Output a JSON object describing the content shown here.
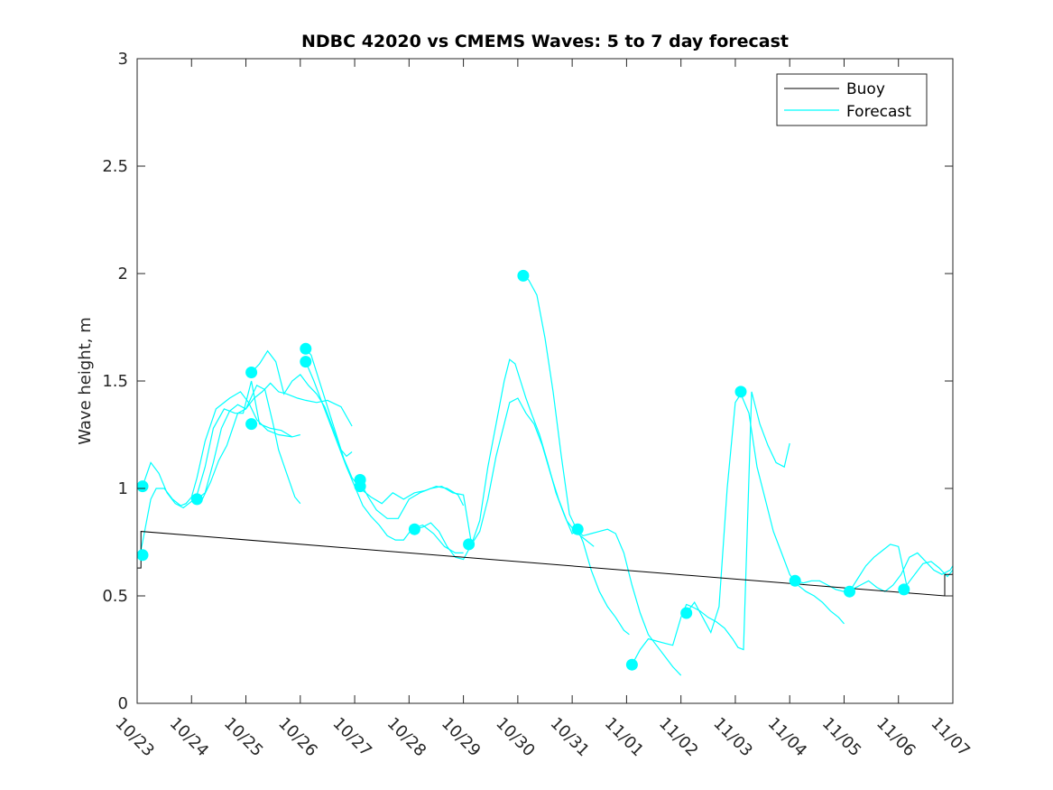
{
  "chart_data": {
    "type": "line",
    "title": "NDBC 42020 vs CMEMS Waves: 5 to 7 day forecast",
    "xlabel": "",
    "ylabel": "Wave height, m",
    "xlim": [
      0,
      15
    ],
    "ylim": [
      0,
      3
    ],
    "x_tick_values": [
      0,
      1,
      2,
      3,
      4,
      5,
      6,
      7,
      8,
      9,
      10,
      11,
      12,
      13,
      14,
      15
    ],
    "x_tick_labels": [
      "10/23",
      "10/24",
      "10/25",
      "10/26",
      "10/27",
      "10/28",
      "10/29",
      "10/30",
      "10/31",
      "11/01",
      "11/02",
      "11/03",
      "11/04",
      "11/05",
      "11/06",
      "11/07"
    ],
    "y_tick_values": [
      0,
      0.5,
      1,
      1.5,
      2,
      2.5,
      3
    ],
    "y_tick_labels": [
      "0",
      "0.5",
      "1",
      "1.5",
      "2",
      "2.5",
      "3"
    ],
    "legend": {
      "position": "top-right",
      "entries": [
        {
          "label": "Buoy",
          "color": "#000000"
        },
        {
          "label": "Forecast",
          "color": "#00ffff"
        }
      ]
    },
    "colors": {
      "buoy": "#000000",
      "forecast": "#00ffff",
      "marker": "#00ffff"
    },
    "buoy": {
      "x": [
        0,
        0.07,
        0.07,
        14.85,
        14.85,
        15
      ],
      "y": [
        0.63,
        0.63,
        0.8,
        0.5,
        0.6,
        0.6
      ]
    },
    "forecast_series": [
      {
        "x": [
          0.05,
          0.1,
          0.25,
          0.35,
          0.5,
          0.65,
          0.8,
          0.9,
          1.0,
          1.1,
          1.25,
          1.45,
          1.7,
          1.9,
          2.05,
          2.2,
          2.4,
          2.6,
          2.85
        ],
        "y": [
          0.69,
          0.75,
          0.95,
          1.0,
          1.0,
          0.95,
          0.92,
          0.93,
          0.96,
          1.05,
          1.22,
          1.37,
          1.42,
          1.45,
          1.4,
          1.32,
          1.27,
          1.25,
          1.24
        ]
      },
      {
        "x": [
          0.1,
          0.25,
          0.4,
          0.55,
          0.7,
          0.85,
          1.0,
          1.1,
          1.25,
          1.4,
          1.6,
          1.8,
          1.95,
          2.1,
          2.25,
          2.45,
          2.65,
          2.85,
          3.0
        ],
        "y": [
          1.01,
          1.12,
          1.07,
          0.98,
          0.93,
          0.91,
          0.94,
          0.97,
          1.1,
          1.28,
          1.37,
          1.35,
          1.35,
          1.5,
          1.3,
          1.28,
          1.27,
          1.24,
          1.25
        ]
      },
      {
        "x": [
          1.1,
          1.2,
          1.35,
          1.5,
          1.65,
          1.85,
          2.0,
          2.15,
          2.3,
          2.45,
          2.6,
          2.75,
          2.95,
          3.1,
          3.3,
          3.5,
          3.75,
          3.95
        ],
        "y": [
          0.96,
          0.95,
          1.03,
          1.13,
          1.2,
          1.35,
          1.37,
          1.42,
          1.45,
          1.49,
          1.45,
          1.44,
          1.42,
          1.41,
          1.4,
          1.41,
          1.38,
          1.29
        ]
      },
      {
        "x": [
          2.1,
          2.25,
          2.4,
          2.55,
          2.7,
          2.85,
          3.0,
          3.15,
          3.3,
          3.45,
          3.6,
          3.75,
          3.85,
          3.95
        ],
        "y": [
          1.54,
          1.58,
          1.64,
          1.59,
          1.44,
          1.5,
          1.53,
          1.48,
          1.44,
          1.38,
          1.28,
          1.18,
          1.15,
          1.17
        ]
      },
      {
        "x": [
          1.1,
          1.25,
          1.4,
          1.55,
          1.7,
          1.85,
          2.0,
          2.2,
          2.35,
          2.5,
          2.6,
          2.75,
          2.9,
          3.0
        ],
        "y": [
          0.95,
          0.98,
          1.12,
          1.28,
          1.36,
          1.39,
          1.37,
          1.48,
          1.46,
          1.3,
          1.18,
          1.07,
          0.96,
          0.93
        ]
      },
      {
        "x": [
          3.1,
          3.25,
          3.4,
          3.55,
          3.7,
          3.85,
          4.0,
          4.15,
          4.3,
          4.45,
          4.6,
          4.75,
          4.9,
          5.05,
          5.25,
          5.45,
          5.65,
          5.85,
          6.0
        ],
        "y": [
          1.59,
          1.5,
          1.4,
          1.3,
          1.2,
          1.1,
          1.01,
          0.92,
          0.87,
          0.83,
          0.78,
          0.76,
          0.76,
          0.81,
          0.83,
          0.79,
          0.73,
          0.7,
          0.7
        ]
      },
      {
        "x": [
          3.1,
          3.2,
          3.35,
          3.5,
          3.65,
          3.8,
          3.95,
          4.1,
          4.3,
          4.5,
          4.7,
          4.9,
          5.1,
          5.3,
          5.5,
          5.7,
          5.9,
          6.0
        ],
        "y": [
          1.65,
          1.62,
          1.5,
          1.38,
          1.26,
          1.14,
          1.05,
          1.0,
          0.96,
          0.93,
          0.98,
          0.95,
          0.98,
          0.99,
          1.01,
          1.0,
          0.97,
          0.92
        ]
      },
      {
        "x": [
          4.1,
          4.25,
          4.4,
          4.6,
          4.8,
          5.0,
          5.2,
          5.4,
          5.6,
          5.8,
          6.0,
          6.15,
          6.3,
          6.45,
          6.6,
          6.75,
          6.85,
          7.0,
          7.15,
          7.3,
          7.45,
          7.6,
          7.75,
          7.9,
          8.05,
          8.15,
          8.25,
          8.4
        ],
        "y": [
          1.03,
          0.96,
          0.9,
          0.86,
          0.86,
          0.95,
          0.98,
          1.0,
          1.01,
          0.98,
          0.97,
          0.74,
          0.8,
          0.95,
          1.15,
          1.3,
          1.4,
          1.42,
          1.35,
          1.3,
          1.2,
          1.07,
          0.95,
          0.85,
          0.8,
          0.78,
          0.76,
          0.73
        ]
      },
      {
        "x": [
          5.1,
          5.25,
          5.4,
          5.55,
          5.7,
          5.85,
          6.0,
          6.15,
          6.3,
          6.45,
          6.6,
          6.75,
          6.85,
          6.95,
          7.05,
          7.15,
          7.25,
          7.4,
          7.55,
          7.7,
          7.85,
          8.0,
          8.15
        ],
        "y": [
          0.81,
          0.82,
          0.84,
          0.8,
          0.73,
          0.68,
          0.67,
          0.74,
          0.85,
          1.1,
          1.3,
          1.5,
          1.6,
          1.58,
          1.5,
          1.42,
          1.35,
          1.25,
          1.12,
          0.98,
          0.88,
          0.79,
          0.81
        ]
      },
      {
        "x": [
          7.1,
          7.2,
          7.35,
          7.5,
          7.65,
          7.8,
          7.95,
          8.1,
          8.2,
          8.35,
          8.5,
          8.65,
          8.8,
          8.95,
          9.1,
          9.25,
          9.4,
          9.55,
          9.7,
          9.85,
          10.0
        ],
        "y": [
          1.99,
          1.97,
          1.9,
          1.7,
          1.45,
          1.15,
          0.88,
          0.8,
          0.78,
          0.79,
          0.8,
          0.81,
          0.79,
          0.7,
          0.55,
          0.42,
          0.32,
          0.27,
          0.22,
          0.17,
          0.13
        ]
      },
      {
        "x": [
          8.1,
          8.2,
          8.35,
          8.5,
          8.65,
          8.8,
          8.95,
          9.05
        ],
        "y": [
          0.81,
          0.75,
          0.62,
          0.52,
          0.45,
          0.4,
          0.34,
          0.32
        ]
      },
      {
        "x": [
          9.1,
          9.25,
          9.4,
          9.55,
          9.7,
          9.85,
          10.0,
          10.1,
          10.2,
          10.35,
          10.5,
          10.65,
          10.8,
          10.95,
          11.05,
          11.15,
          11.3,
          11.45,
          11.6,
          11.75,
          11.9,
          12.0
        ],
        "y": [
          0.18,
          0.25,
          0.3,
          0.29,
          0.28,
          0.27,
          0.4,
          0.46,
          0.45,
          0.43,
          0.4,
          0.38,
          0.35,
          0.3,
          0.26,
          0.25,
          1.45,
          1.3,
          1.2,
          1.12,
          1.1,
          1.21
        ]
      },
      {
        "x": [
          10.1,
          10.25,
          10.4,
          10.55,
          10.7,
          10.85,
          11.0,
          11.1,
          11.25,
          11.4,
          11.55,
          11.7,
          11.85,
          12.0,
          12.15,
          12.3,
          12.45,
          12.6,
          12.75,
          12.9,
          13.0
        ],
        "y": [
          0.42,
          0.47,
          0.4,
          0.33,
          0.45,
          1.0,
          1.4,
          1.44,
          1.35,
          1.1,
          0.95,
          0.8,
          0.7,
          0.6,
          0.55,
          0.52,
          0.5,
          0.47,
          0.43,
          0.4,
          0.37
        ]
      },
      {
        "x": [
          12.1,
          12.25,
          12.4,
          12.55,
          12.7,
          12.85,
          13.0,
          13.15,
          13.3,
          13.45,
          13.6,
          13.75,
          13.9,
          14.05,
          14.2,
          14.35,
          14.5,
          14.65,
          14.8,
          14.95,
          15.0
        ],
        "y": [
          0.57,
          0.56,
          0.57,
          0.57,
          0.55,
          0.53,
          0.52,
          0.53,
          0.55,
          0.57,
          0.54,
          0.52,
          0.55,
          0.6,
          0.68,
          0.7,
          0.66,
          0.62,
          0.6,
          0.62,
          0.64
        ]
      },
      {
        "x": [
          13.1,
          13.25,
          13.4,
          13.55,
          13.7,
          13.85,
          14.0,
          14.15,
          14.3,
          14.45,
          14.6,
          14.75,
          14.9,
          15.0
        ],
        "y": [
          0.52,
          0.58,
          0.64,
          0.68,
          0.71,
          0.74,
          0.73,
          0.55,
          0.6,
          0.65,
          0.66,
          0.63,
          0.59,
          0.62
        ]
      }
    ],
    "forecast_markers": {
      "x": [
        0.1,
        0.1,
        1.1,
        2.1,
        2.1,
        3.1,
        3.1,
        4.1,
        4.1,
        5.1,
        6.1,
        7.1,
        8.1,
        9.1,
        10.1,
        11.1,
        12.1,
        13.1,
        14.1
      ],
      "y": [
        0.69,
        1.01,
        0.95,
        1.3,
        1.54,
        1.59,
        1.65,
        1.01,
        1.04,
        0.81,
        0.74,
        1.99,
        0.81,
        0.18,
        0.42,
        1.45,
        0.57,
        0.52,
        0.53
      ]
    }
  }
}
